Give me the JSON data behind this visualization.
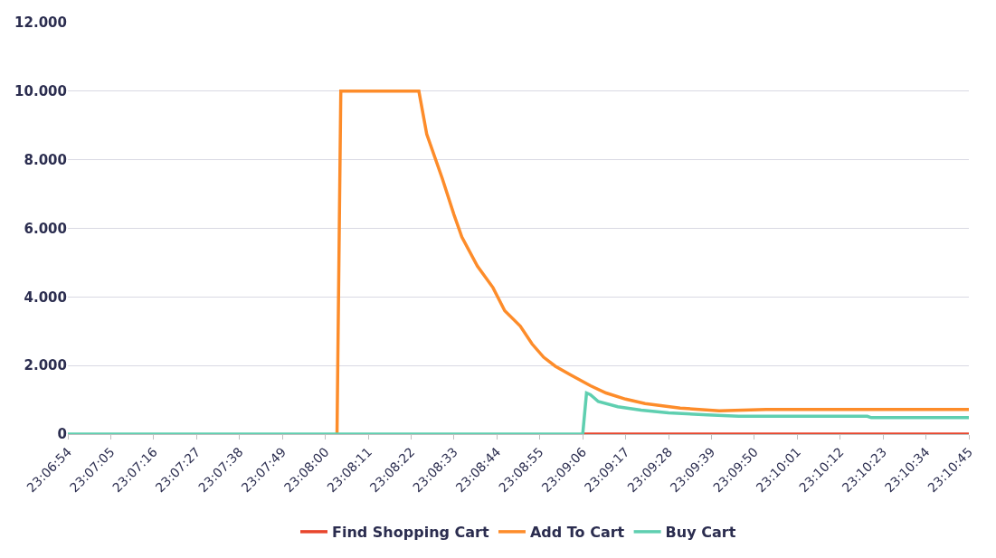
{
  "chart_data": {
    "type": "line",
    "legend": "bottom",
    "grid": "y",
    "line_style": "solid",
    "marker": "none",
    "xlim": [
      23.115,
      23.17917
    ],
    "ylim": [
      0,
      12000
    ],
    "xticks": [
      {
        "value": 23.115,
        "label": "23:06:54"
      },
      {
        "value": 23.11806,
        "label": "23:07:05"
      },
      {
        "value": 23.12111,
        "label": "23:07:16"
      },
      {
        "value": 23.12417,
        "label": "23:07:27"
      },
      {
        "value": 23.12722,
        "label": "23:07:38"
      },
      {
        "value": 23.13028,
        "label": "23:07:49"
      },
      {
        "value": 23.13333,
        "label": "23:08:00"
      },
      {
        "value": 23.13639,
        "label": "23:08:11"
      },
      {
        "value": 23.13944,
        "label": "23:08:22"
      },
      {
        "value": 23.1425,
        "label": "23:08:33"
      },
      {
        "value": 23.14556,
        "label": "23:08:44"
      },
      {
        "value": 23.14861,
        "label": "23:08:55"
      },
      {
        "value": 23.15167,
        "label": "23:09:06"
      },
      {
        "value": 23.15472,
        "label": "23:09:17"
      },
      {
        "value": 23.15778,
        "label": "23:09:28"
      },
      {
        "value": 23.16083,
        "label": "23:09:39"
      },
      {
        "value": 23.16389,
        "label": "23:09:50"
      },
      {
        "value": 23.16694,
        "label": "23:10:01"
      },
      {
        "value": 23.17,
        "label": "23:10:12"
      },
      {
        "value": 23.17306,
        "label": "23:10:23"
      },
      {
        "value": 23.17611,
        "label": "23:10:34"
      },
      {
        "value": 23.17917,
        "label": "23:10:45"
      }
    ],
    "yticks": [
      0,
      {
        "value": 2000,
        "label": "2.000"
      },
      {
        "value": 4000,
        "label": "4.000"
      },
      {
        "value": 6000,
        "label": "6.000"
      },
      {
        "value": 8000,
        "label": "8.000"
      },
      {
        "value": 10000,
        "label": "10.000"
      },
      {
        "value": 12000,
        "label": "12.000"
      }
    ],
    "series": [
      {
        "name": "Find Shopping Cart",
        "color": "#e8452c",
        "x": [
          23.15167,
          23.17917
        ],
        "values": [
          0,
          0
        ]
      },
      {
        "name": "Add To Cart",
        "color": "#fd8c2a",
        "x": [
          23.13417,
          23.13444,
          23.14,
          23.14056,
          23.14167,
          23.1425,
          23.14306,
          23.14417,
          23.14528,
          23.14611,
          23.14722,
          23.14806,
          23.14889,
          23.14972,
          23.15083,
          23.15222,
          23.15333,
          23.15472,
          23.15611,
          23.15861,
          23.16139,
          23.16472,
          23.17917
        ],
        "values": [
          0,
          10000,
          10000,
          8750,
          7450,
          6400,
          5750,
          4900,
          4270,
          3600,
          3150,
          2630,
          2240,
          1980,
          1720,
          1410,
          1200,
          1020,
          890,
          760,
          680,
          720,
          720
        ]
      },
      {
        "name": "Buy Cart",
        "color": "#5fcfb0",
        "x": [
          23.115,
          23.15167,
          23.15194,
          23.15222,
          23.15278,
          23.15417,
          23.15583,
          23.15778,
          23.16056,
          23.16278,
          23.17194,
          23.17222,
          23.17917
        ],
        "values": [
          0,
          0,
          1200,
          1150,
          950,
          800,
          700,
          620,
          560,
          520,
          520,
          480,
          480
        ]
      }
    ]
  }
}
